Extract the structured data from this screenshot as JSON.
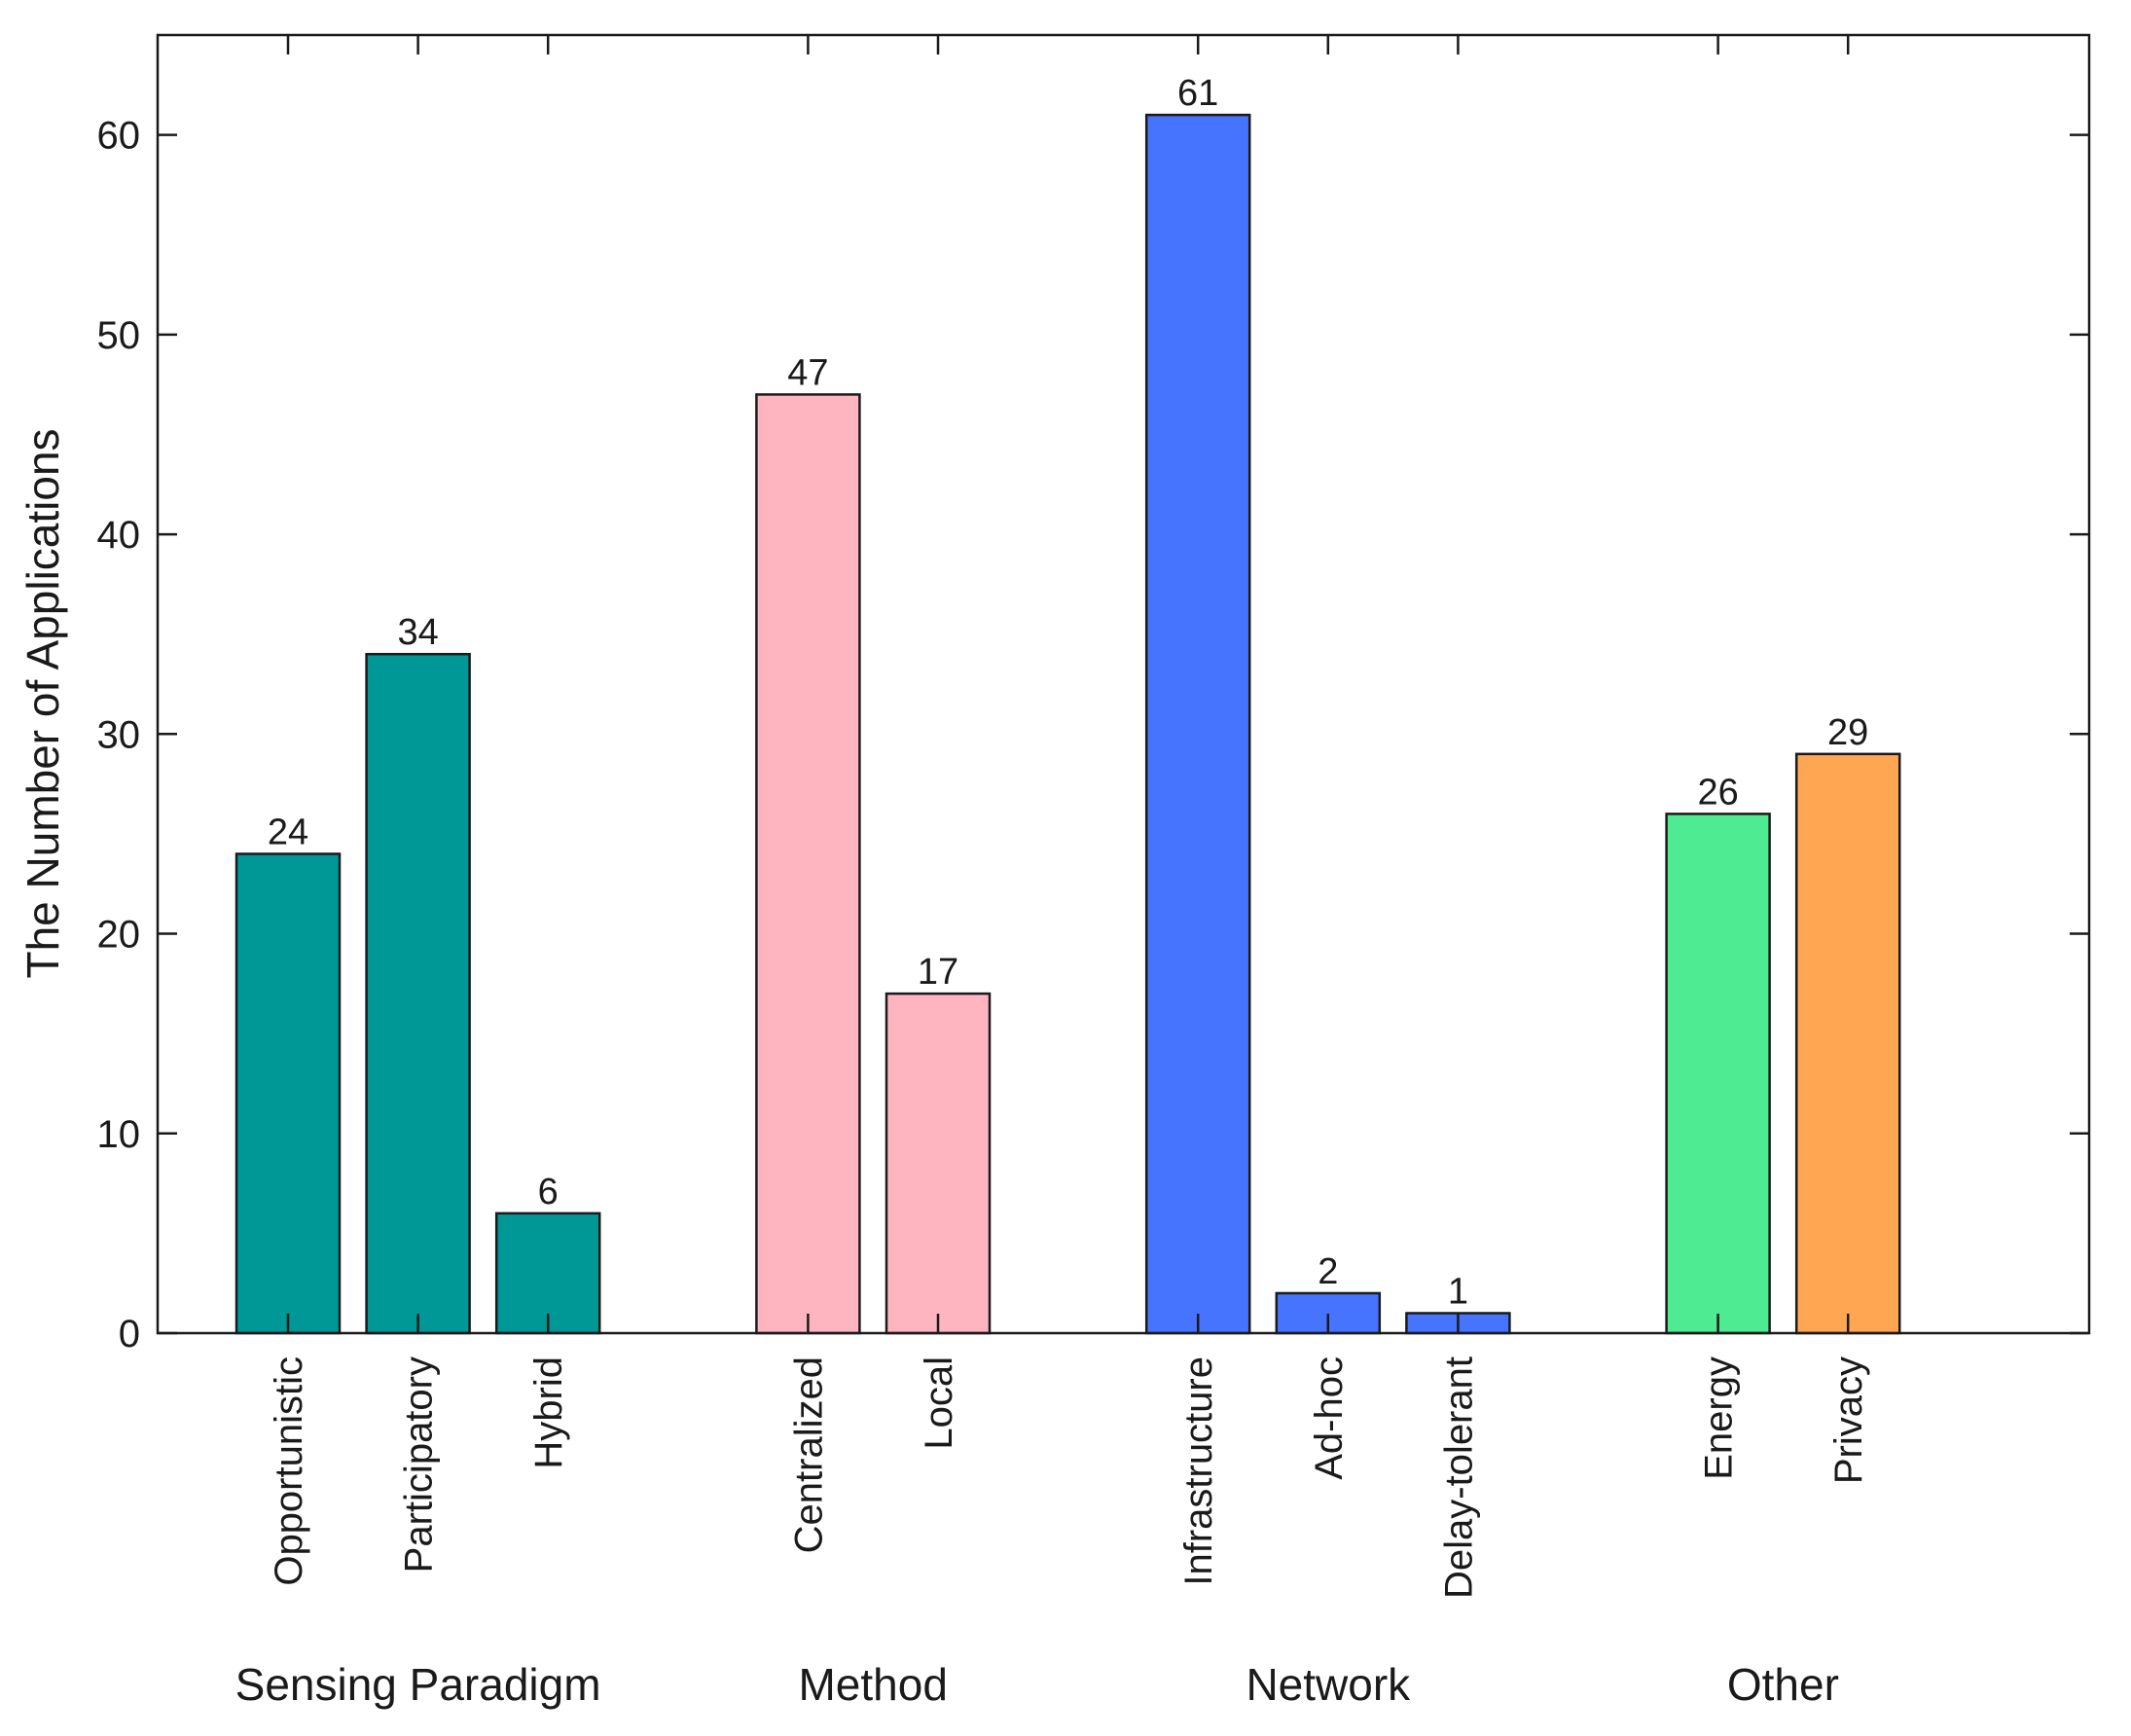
{
  "chart_data": {
    "type": "bar",
    "title": "",
    "xlabel": "",
    "ylabel": "The Number of Applications",
    "ylim": [
      0,
      65
    ],
    "yticks": [
      0,
      10,
      20,
      30,
      40,
      50,
      60
    ],
    "grid": false,
    "groups": [
      {
        "name": "Sensing Paradigm",
        "color": "#009896",
        "bars": [
          {
            "label": "Opportunistic",
            "value": 24
          },
          {
            "label": "Participatory",
            "value": 34
          },
          {
            "label": "Hybrid",
            "value": 6
          }
        ]
      },
      {
        "name": "Method",
        "color": "#FFB5C0",
        "bars": [
          {
            "label": "Centralized",
            "value": 47
          },
          {
            "label": "Local",
            "value": 17
          }
        ]
      },
      {
        "name": "Network",
        "color": "#4774FF",
        "bars": [
          {
            "label": "Infrastructure",
            "value": 61
          },
          {
            "label": "Ad-hoc",
            "value": 2
          },
          {
            "label": "Delay-tolerant",
            "value": 1
          }
        ]
      },
      {
        "name": "Other",
        "color": null,
        "bars": [
          {
            "label": "Energy",
            "value": 26,
            "color": "#4EEB92"
          },
          {
            "label": "Privacy",
            "value": 29,
            "color": "#FFA653"
          }
        ]
      }
    ]
  }
}
